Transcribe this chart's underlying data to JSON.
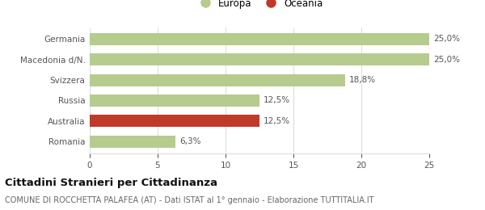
{
  "categories": [
    "Germania",
    "Macedonia d/N.",
    "Svizzera",
    "Russia",
    "Australia",
    "Romania"
  ],
  "values": [
    25.0,
    25.0,
    18.8,
    12.5,
    12.5,
    6.3
  ],
  "bar_colors": [
    "#b5cc8e",
    "#b5cc8e",
    "#b5cc8e",
    "#b5cc8e",
    "#c0392b",
    "#b5cc8e"
  ],
  "labels": [
    "25,0%",
    "25,0%",
    "18,8%",
    "12,5%",
    "12,5%",
    "6,3%"
  ],
  "xlim": [
    0,
    25
  ],
  "xticks": [
    0,
    5,
    10,
    15,
    20,
    25
  ],
  "legend": [
    {
      "label": "Europa",
      "color": "#b5cc8e"
    },
    {
      "label": "Oceania",
      "color": "#c0392b"
    }
  ],
  "title": "Cittadini Stranieri per Cittadinanza",
  "subtitle": "COMUNE DI ROCCHETTA PALAFEA (AT) - Dati ISTAT al 1° gennaio - Elaborazione TUTTITALIA.IT",
  "bg_color": "#ffffff",
  "bar_edge_color": "none",
  "grid_color": "#dddddd",
  "title_fontsize": 9.5,
  "subtitle_fontsize": 7,
  "label_fontsize": 7.5,
  "tick_fontsize": 7.5,
  "legend_fontsize": 8.5
}
